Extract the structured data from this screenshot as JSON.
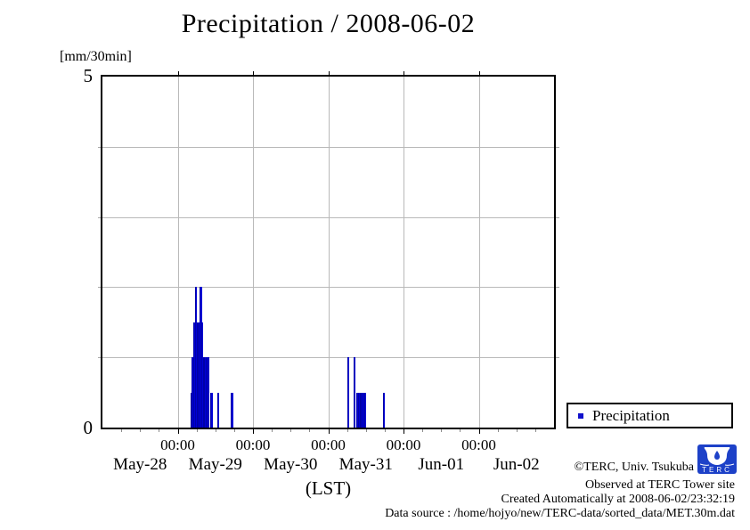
{
  "title": "Precipitation / 2008-06-02",
  "y_axis": {
    "unit_label": "[mm/30min]",
    "top_label": "5",
    "bottom_label": "0"
  },
  "x_axis": {
    "axis_label": "(LST)",
    "time_tick_label": "00:00"
  },
  "legend": {
    "label": "Precipitation",
    "marker_color": "#1111cc"
  },
  "footer": {
    "copyright": "©TERC, Univ. Tsukuba",
    "observed": "Observed at TERC Tower site",
    "created": "Created Automatically at 2008-06-02/23:32:19",
    "source": "Data source : /home/hojyo/new/TERC-data/sorted_data/MET.30m.dat",
    "logo_text": "TERC"
  },
  "chart_data": {
    "type": "bar",
    "title": "Precipitation / 2008-06-02",
    "ylabel": "[mm/30min]",
    "xlabel": "(LST)",
    "ylim": [
      0,
      5
    ],
    "yticks_labeled": [
      0,
      5
    ],
    "ygrid_values": [
      1,
      2,
      3,
      4
    ],
    "grid": true,
    "legend_position": "outside-bottom-right",
    "bar_interval_minutes": 30,
    "days": [
      "May-28",
      "May-29",
      "May-30",
      "May-31",
      "Jun-01",
      "Jun-02"
    ],
    "day_tick_label": "00:00",
    "series_name": "Precipitation",
    "bar_color": "#0000d6",
    "bars": [
      {
        "date": "May-29",
        "time": "04:00",
        "value": 0.5
      },
      {
        "date": "May-29",
        "time": "04:30",
        "value": 1.0
      },
      {
        "date": "May-29",
        "time": "05:00",
        "value": 1.5
      },
      {
        "date": "May-29",
        "time": "05:30",
        "value": 2.0
      },
      {
        "date": "May-29",
        "time": "06:00",
        "value": 1.5
      },
      {
        "date": "May-29",
        "time": "06:30",
        "value": 1.5
      },
      {
        "date": "May-29",
        "time": "07:00",
        "value": 2.0
      },
      {
        "date": "May-29",
        "time": "07:30",
        "value": 1.5
      },
      {
        "date": "May-29",
        "time": "08:00",
        "value": 1.0
      },
      {
        "date": "May-29",
        "time": "08:30",
        "value": 1.0
      },
      {
        "date": "May-29",
        "time": "09:00",
        "value": 1.0
      },
      {
        "date": "May-29",
        "time": "09:30",
        "value": 1.0
      },
      {
        "date": "May-29",
        "time": "10:30",
        "value": 0.5
      },
      {
        "date": "May-29",
        "time": "12:30",
        "value": 0.5
      },
      {
        "date": "May-29",
        "time": "17:00",
        "value": 0.5
      },
      {
        "date": "May-31",
        "time": "06:00",
        "value": 1.0
      },
      {
        "date": "May-31",
        "time": "08:00",
        "value": 1.0
      },
      {
        "date": "May-31",
        "time": "09:00",
        "value": 0.5
      },
      {
        "date": "May-31",
        "time": "09:30",
        "value": 0.5
      },
      {
        "date": "May-31",
        "time": "10:00",
        "value": 0.5
      },
      {
        "date": "May-31",
        "time": "10:30",
        "value": 0.5
      },
      {
        "date": "May-31",
        "time": "11:00",
        "value": 0.5
      },
      {
        "date": "May-31",
        "time": "11:30",
        "value": 0.5
      },
      {
        "date": "May-31",
        "time": "17:30",
        "value": 0.5
      }
    ]
  }
}
